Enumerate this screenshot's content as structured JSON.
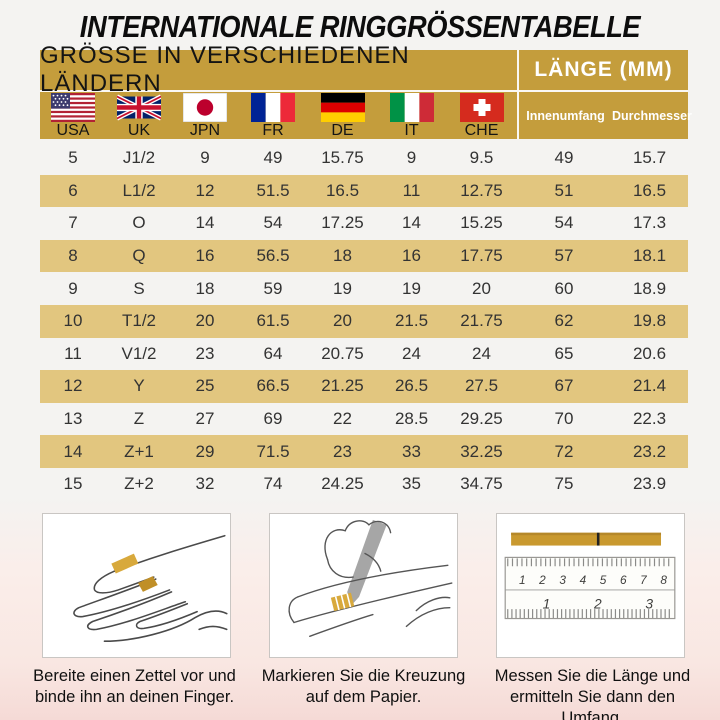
{
  "page": {
    "title": "INTERNATIONALE RINGGRÖSSENTABELLE"
  },
  "colors": {
    "gold_header": "#c49d3c",
    "row_stripe": "#e2c67f",
    "band_gold": "#c9992f",
    "swiss_red": "#d52b1e"
  },
  "table": {
    "header_left": "GRÖSSE IN VERSCHIEDENEN LÄNDERN",
    "header_right": "LÄNGE (MM)",
    "subheaders_right": {
      "circumference": "Innenumfang",
      "diameter": "Durchmesser"
    },
    "countries": [
      {
        "code": "usa",
        "label": "USA"
      },
      {
        "code": "uk",
        "label": "UK"
      },
      {
        "code": "jpn",
        "label": "JPN"
      },
      {
        "code": "fr",
        "label": "FR"
      },
      {
        "code": "de",
        "label": "DE"
      },
      {
        "code": "it",
        "label": "IT"
      },
      {
        "code": "che",
        "label": "CHE"
      }
    ],
    "column_keys": [
      "usa",
      "uk",
      "jpn",
      "fr",
      "de",
      "it",
      "che",
      "innenumfang",
      "durchmesser"
    ],
    "rows": [
      [
        "5",
        "J1/2",
        "9",
        "49",
        "15.75",
        "9",
        "9.5",
        "49",
        "15.7"
      ],
      [
        "6",
        "L1/2",
        "12",
        "51.5",
        "16.5",
        "11",
        "12.75",
        "51",
        "16.5"
      ],
      [
        "7",
        "O",
        "14",
        "54",
        "17.25",
        "14",
        "15.25",
        "54",
        "17.3"
      ],
      [
        "8",
        "Q",
        "16",
        "56.5",
        "18",
        "16",
        "17.75",
        "57",
        "18.1"
      ],
      [
        "9",
        "S",
        "18",
        "59",
        "19",
        "19",
        "20",
        "60",
        "18.9"
      ],
      [
        "10",
        "T1/2",
        "20",
        "61.5",
        "20",
        "21.5",
        "21.75",
        "62",
        "19.8"
      ],
      [
        "11",
        "V1/2",
        "23",
        "64",
        "20.75",
        "24",
        "24",
        "65",
        "20.6"
      ],
      [
        "12",
        "Y",
        "25",
        "66.5",
        "21.25",
        "26.5",
        "27.5",
        "67",
        "21.4"
      ],
      [
        "13",
        "Z",
        "27",
        "69",
        "22",
        "28.5",
        "29.25",
        "70",
        "22.3"
      ],
      [
        "14",
        "Z+1",
        "29",
        "71.5",
        "23",
        "33",
        "32.25",
        "72",
        "23.2"
      ],
      [
        "15",
        "Z+2",
        "32",
        "74",
        "24.25",
        "35",
        "34.75",
        "75",
        "23.9"
      ]
    ]
  },
  "figures": {
    "step1": {
      "caption": "Bereite einen Zettel vor und binde ihn an deinen Finger."
    },
    "step2": {
      "caption": "Markieren Sie die Kreuzung auf dem Papier."
    },
    "step3": {
      "caption": "Messen Sie die Länge und ermitteln Sie dann den Umfang.",
      "ruler_scale_cm": "1 2 3 4 5 6 7 8",
      "ruler_scale_inch": "1 2 3"
    }
  }
}
